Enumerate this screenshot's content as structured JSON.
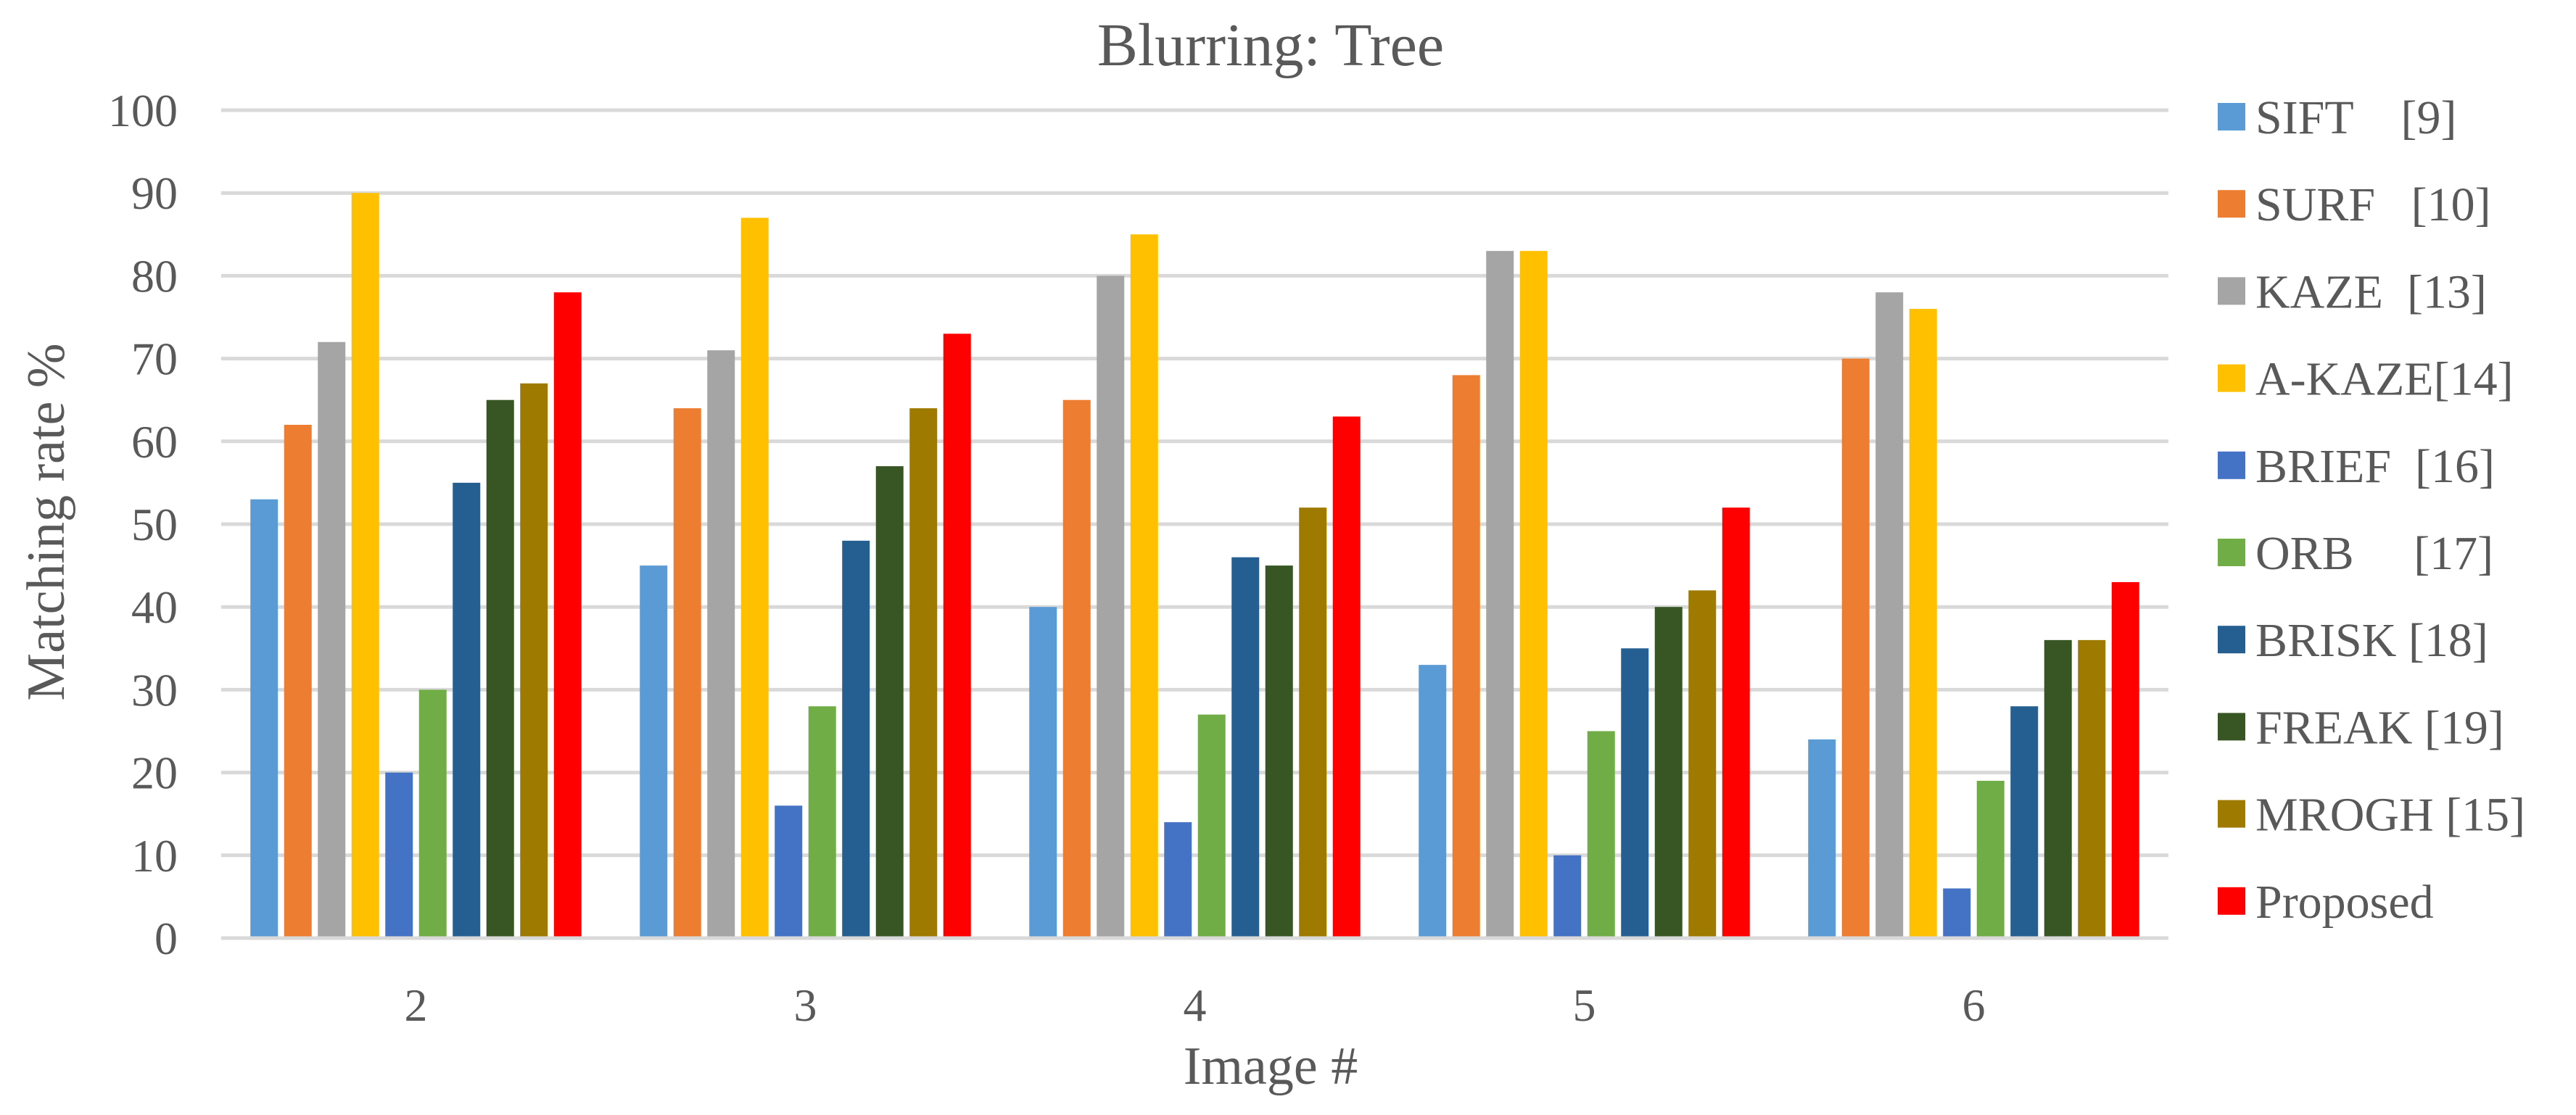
{
  "chart_data": {
    "type": "bar",
    "title": "Blurring: Tree",
    "xlabel": "Image #",
    "ylabel": "Matching rate %",
    "ylim": [
      0,
      100
    ],
    "yticks": [
      0,
      10,
      20,
      30,
      40,
      50,
      60,
      70,
      80,
      90,
      100
    ],
    "grid": true,
    "legend_position": "right",
    "categories": [
      "2",
      "3",
      "4",
      "5",
      "6"
    ],
    "series": [
      {
        "name": "SIFT    [9]",
        "color": "#5b9bd5",
        "values": [
          53,
          45,
          40,
          33,
          24
        ]
      },
      {
        "name": "SURF   [10]",
        "color": "#ed7d31",
        "values": [
          62,
          64,
          65,
          68,
          70
        ]
      },
      {
        "name": "KAZE  [13]",
        "color": "#a5a5a5",
        "values": [
          72,
          71,
          80,
          83,
          78
        ]
      },
      {
        "name": "A-KAZE[14]",
        "color": "#ffc000",
        "values": [
          90,
          87,
          85,
          83,
          76
        ]
      },
      {
        "name": "BRIEF  [16]",
        "color": "#4472c4",
        "values": [
          20,
          16,
          14,
          10,
          6
        ]
      },
      {
        "name": "ORB     [17]",
        "color": "#70ad47",
        "values": [
          30,
          28,
          27,
          25,
          19
        ]
      },
      {
        "name": "BRISK [18]",
        "color": "#255e91",
        "values": [
          55,
          48,
          46,
          35,
          28
        ]
      },
      {
        "name": "FREAK [19]",
        "color": "#375623",
        "values": [
          65,
          57,
          45,
          40,
          36
        ]
      },
      {
        "name": "MROGH [15]",
        "color": "#9e7a00",
        "values": [
          67,
          64,
          52,
          42,
          36
        ]
      },
      {
        "name": "Proposed",
        "color": "#ff0000",
        "values": [
          78,
          73,
          63,
          52,
          43
        ]
      }
    ]
  }
}
